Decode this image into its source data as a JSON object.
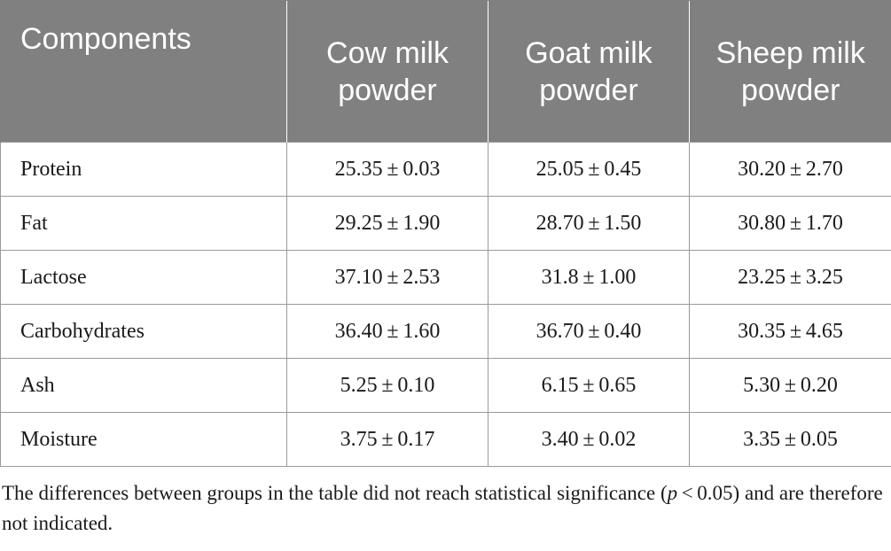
{
  "table": {
    "headers": [
      "Components",
      "Cow milk powder",
      "Goat milk powder",
      "Sheep milk powder"
    ],
    "rows": [
      {
        "component": "Protein",
        "cow": "25.35 ± 0.03",
        "goat": "25.05 ± 0.45",
        "sheep": "30.20 ± 2.70"
      },
      {
        "component": "Fat",
        "cow": "29.25 ± 1.90",
        "goat": "28.70 ± 1.50",
        "sheep": "30.80 ± 1.70"
      },
      {
        "component": "Lactose",
        "cow": "37.10 ± 2.53",
        "goat": "31.8 ± 1.00",
        "sheep": "23.25 ± 3.25"
      },
      {
        "component": "Carbohydrates",
        "cow": "36.40 ± 1.60",
        "goat": "36.70 ± 0.40",
        "sheep": "30.35 ± 4.65"
      },
      {
        "component": "Ash",
        "cow": "5.25 ± 0.10",
        "goat": "6.15 ± 0.65",
        "sheep": "5.30 ± 0.20"
      },
      {
        "component": "Moisture",
        "cow": "3.75 ± 0.17",
        "goat": "3.40 ± 0.02",
        "sheep": "3.35 ± 0.05"
      }
    ]
  },
  "footnote": {
    "before": "The differences between groups in the table did not reach statistical significance (",
    "p_symbol": "p",
    "after": " < 0.05) and are therefore not indicated."
  },
  "colors": {
    "header_bg": "#808080",
    "header_text": "#ffffff",
    "border": "#9a9a9a"
  }
}
